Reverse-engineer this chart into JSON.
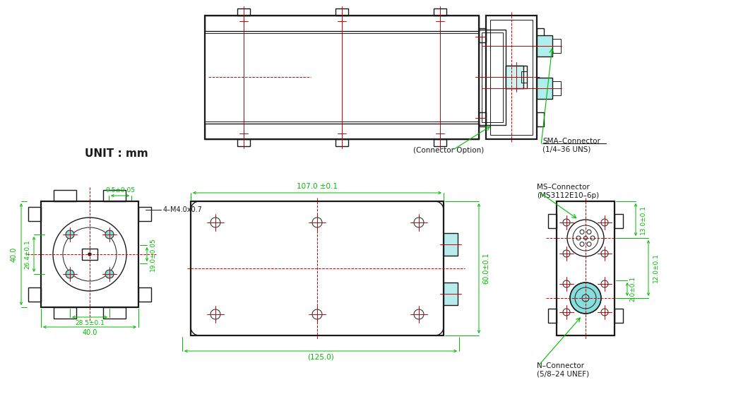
{
  "bg_color": "#ffffff",
  "dk": "#1a1a1a",
  "dg": "#00bb00",
  "dr": "#cc0000",
  "dc": "#00cccc",
  "unit_text": "UNIT : mm",
  "dim_107": "107.0 ±0.1",
  "dim_125": "(125.0)",
  "dim_60": "60.0±0.1",
  "dim_40_left": "40.0",
  "dim_264": "26.4±0.1",
  "dim_95": "9.5±0.05",
  "dim_285": "28.5±0.1",
  "dim_40_bot": "40.0",
  "dim_190": "19.0±0.05",
  "dim_4m": "4–M4.0x0.7",
  "dim_13": "13.0±0.1",
  "dim_12": "12.0±0.1",
  "dim_20": "2.0±0.1",
  "lbl_conn_opt": "(Connector Option)",
  "lbl_sma1": "SMA–Connector",
  "lbl_sma2": "(1/4–36 UNS)",
  "lbl_ms1": "MS–Connector",
  "lbl_ms2": "(MS3112E10–6p)",
  "lbl_n1": "N–Connector",
  "lbl_n2": "(5/8–24 UNEF)"
}
